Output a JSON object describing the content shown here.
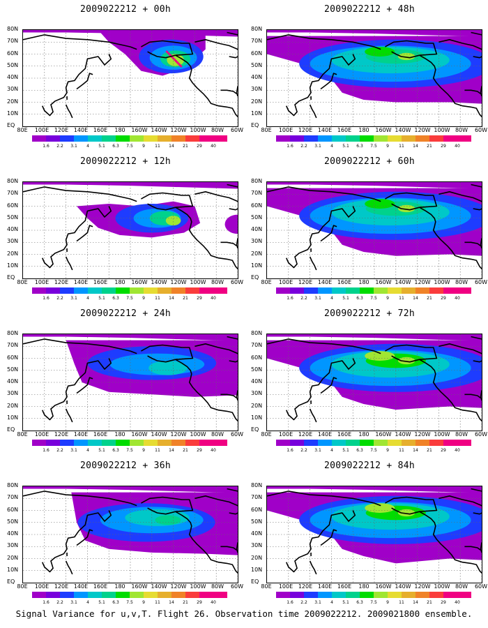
{
  "figure": {
    "caption": "Signal Variance for u,v,T. Flight 26. Observation time 2009022212. 2009021800 ensemble."
  },
  "axes": {
    "lat_labels": [
      "80N",
      "70N",
      "60N",
      "50N",
      "40N",
      "30N",
      "20N",
      "10N",
      "EQ"
    ],
    "lon_labels": [
      "80E",
      "100E",
      "120E",
      "140E",
      "160E",
      "180",
      "160W",
      "140W",
      "120W",
      "100W",
      "80W",
      "60W"
    ]
  },
  "colorbar": {
    "levels": [
      "1.6",
      "2.2",
      "3.1",
      "4",
      "5.1",
      "6.3",
      "7.5",
      "9",
      "11",
      "14",
      "21",
      "29",
      "40"
    ],
    "colors": [
      "#a000c8",
      "#7800dc",
      "#1e3cff",
      "#0096ff",
      "#00c8c8",
      "#00d28c",
      "#00dc00",
      "#a0e632",
      "#e6dc32",
      "#e6af2d",
      "#f08228",
      "#fa3c3c",
      "#f00082"
    ]
  },
  "panels": [
    {
      "title": "2009022212 + 00h",
      "forecast_hour": 0
    },
    {
      "title": "2009022212 + 48h",
      "forecast_hour": 48
    },
    {
      "title": "2009022212 + 12h",
      "forecast_hour": 12
    },
    {
      "title": "2009022212 + 60h",
      "forecast_hour": 60
    },
    {
      "title": "2009022212 + 24h",
      "forecast_hour": 24
    },
    {
      "title": "2009022212 + 72h",
      "forecast_hour": 72
    },
    {
      "title": "2009022212 + 36h",
      "forecast_hour": 36
    },
    {
      "title": "2009022212 + 84h",
      "forecast_hour": 84
    }
  ]
}
